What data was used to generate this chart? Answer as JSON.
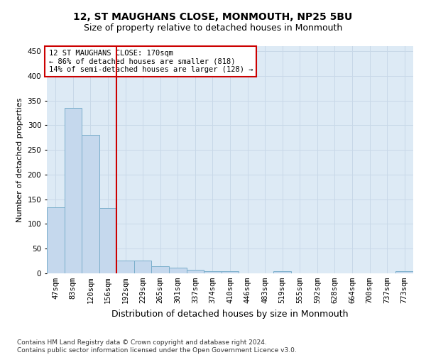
{
  "title": "12, ST MAUGHANS CLOSE, MONMOUTH, NP25 5BU",
  "subtitle": "Size of property relative to detached houses in Monmouth",
  "xlabel": "Distribution of detached houses by size in Monmouth",
  "ylabel": "Number of detached properties",
  "categories": [
    "47sqm",
    "83sqm",
    "120sqm",
    "156sqm",
    "192sqm",
    "229sqm",
    "265sqm",
    "301sqm",
    "337sqm",
    "374sqm",
    "410sqm",
    "446sqm",
    "483sqm",
    "519sqm",
    "555sqm",
    "592sqm",
    "628sqm",
    "664sqm",
    "700sqm",
    "737sqm",
    "773sqm"
  ],
  "values": [
    134,
    335,
    281,
    132,
    26,
    26,
    15,
    11,
    7,
    5,
    4,
    0,
    0,
    4,
    0,
    0,
    0,
    0,
    0,
    0,
    4
  ],
  "bar_color": "#c5d8ed",
  "bar_edge_color": "#7aaecb",
  "vline_x_idx": 3.5,
  "vline_color": "#cc0000",
  "annotation_text": "12 ST MAUGHANS CLOSE: 170sqm\n← 86% of detached houses are smaller (818)\n14% of semi-detached houses are larger (128) →",
  "annotation_box_color": "#ffffff",
  "annotation_box_edge_color": "#cc0000",
  "ylim": [
    0,
    460
  ],
  "yticks": [
    0,
    50,
    100,
    150,
    200,
    250,
    300,
    350,
    400,
    450
  ],
  "grid_color": "#c8d8e8",
  "background_color": "#ddeaf5",
  "footer": "Contains HM Land Registry data © Crown copyright and database right 2024.\nContains public sector information licensed under the Open Government Licence v3.0.",
  "title_fontsize": 10,
  "subtitle_fontsize": 9,
  "xlabel_fontsize": 9,
  "ylabel_fontsize": 8,
  "tick_fontsize": 7.5,
  "annotation_fontsize": 7.5,
  "footer_fontsize": 6.5
}
